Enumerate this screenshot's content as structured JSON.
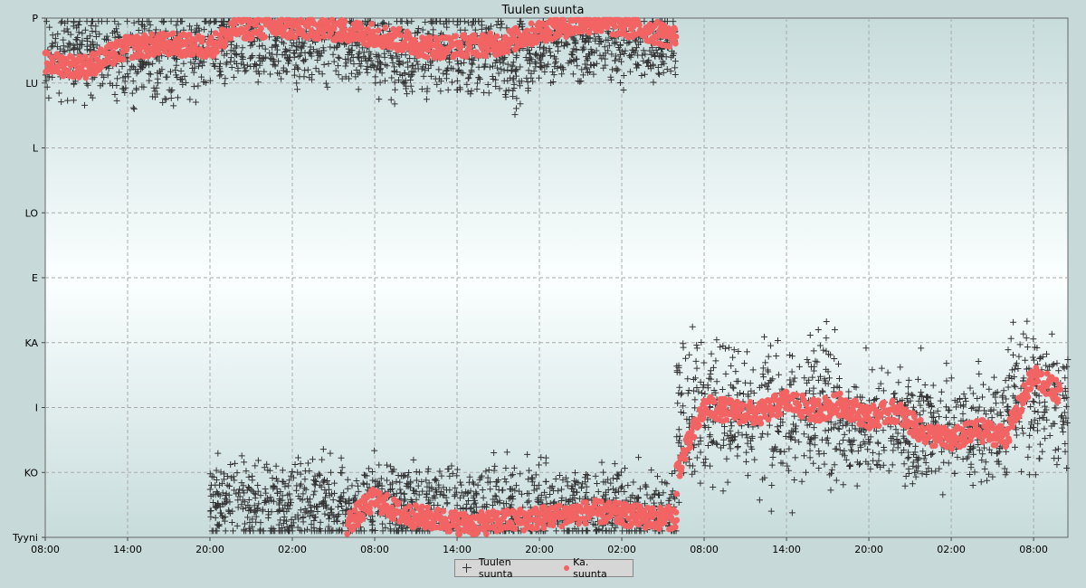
{
  "chart_data": {
    "type": "scatter",
    "title": "Tuulen suunta",
    "xlabel": "",
    "ylabel": "",
    "x_ticks": [
      "08:00",
      "14:00",
      "20:00",
      "02:00",
      "08:00",
      "14:00",
      "20:00",
      "02:00",
      "08:00",
      "14:00",
      "20:00",
      "02:00",
      "08:00"
    ],
    "x_range_hours": [
      0,
      74.5
    ],
    "y_ticks": [
      "Tyyni",
      "KO",
      "I",
      "KA",
      "E",
      "LO",
      "L",
      "LU",
      "P"
    ],
    "y_range": [
      0,
      8
    ],
    "grid": true,
    "legend_position": "bottom-center",
    "series": [
      {
        "name": "Tuulen suunta",
        "marker": "cross",
        "color": "#333333",
        "segments": [
          {
            "h0": 0,
            "h1": 12,
            "y": 7.45,
            "spread": 0.55
          },
          {
            "h0": 12,
            "h1": 24,
            "y": 7.55,
            "spread": 0.5
          },
          {
            "h0": 24,
            "h1": 36,
            "y": 7.45,
            "spread": 0.6
          },
          {
            "h0": 36,
            "h1": 46,
            "y": 7.6,
            "spread": 0.45
          },
          {
            "h0": 12,
            "h1": 36,
            "y": 0.5,
            "spread": 0.55
          },
          {
            "h0": 36,
            "h1": 46,
            "y": 0.45,
            "spread": 0.5
          },
          {
            "h0": 46,
            "h1": 58,
            "y": 1.9,
            "spread": 0.9
          },
          {
            "h0": 58,
            "h1": 70,
            "y": 1.7,
            "spread": 0.7
          },
          {
            "h0": 70,
            "h1": 74.5,
            "y": 2.2,
            "spread": 0.9
          }
        ]
      },
      {
        "name": "Ka. suunta",
        "marker": "dot",
        "color": "#f26464",
        "trend": [
          [
            0,
            7.3
          ],
          [
            3,
            7.25
          ],
          [
            6,
            7.55
          ],
          [
            9,
            7.6
          ],
          [
            12,
            7.55
          ],
          [
            14,
            7.85
          ],
          [
            20,
            7.85
          ],
          [
            24,
            7.75
          ],
          [
            28,
            7.55
          ],
          [
            33,
            7.6
          ],
          [
            37,
            7.85
          ],
          [
            40,
            7.95
          ],
          [
            43,
            7.85
          ],
          [
            46,
            7.7
          ],
          [
            22,
            0.2
          ],
          [
            24,
            0.6
          ],
          [
            26,
            0.35
          ],
          [
            31,
            0.2
          ],
          [
            36,
            0.3
          ],
          [
            40,
            0.4
          ],
          [
            44,
            0.3
          ],
          [
            46,
            0.3
          ],
          [
            46,
            1.0
          ],
          [
            48,
            2.0
          ],
          [
            50,
            1.95
          ],
          [
            52,
            1.9
          ],
          [
            54,
            2.1
          ],
          [
            56,
            1.95
          ],
          [
            58,
            2.05
          ],
          [
            60,
            1.85
          ],
          [
            62,
            1.95
          ],
          [
            64,
            1.6
          ],
          [
            66,
            1.5
          ],
          [
            68,
            1.65
          ],
          [
            70,
            1.55
          ],
          [
            72,
            2.5
          ],
          [
            74,
            2.2
          ]
        ]
      }
    ]
  }
}
